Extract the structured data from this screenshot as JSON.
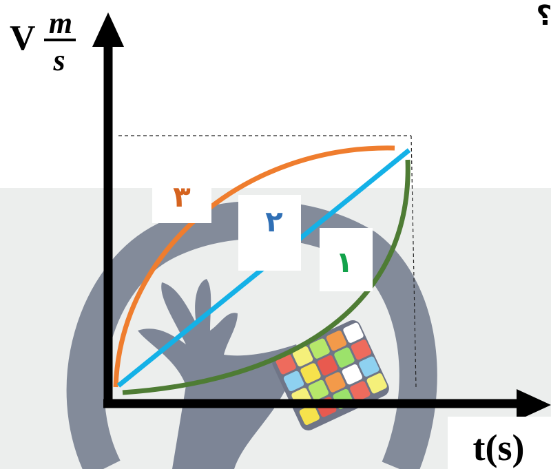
{
  "question_mark": "؟",
  "y_axis": {
    "symbol": "V",
    "unit_numerator": "m",
    "unit_denominator": "s"
  },
  "x_axis": {
    "label": "t(s)"
  },
  "curves": [
    {
      "label": "۳",
      "color": "#ef7d2e",
      "shape": "concave"
    },
    {
      "label": "۲",
      "color": "#14b1e7",
      "shape": "linear"
    },
    {
      "label": "۱",
      "color": "#4e7c34",
      "shape": "convex"
    }
  ],
  "label_colors": {
    "curve3": "#d5631f",
    "curve2": "#2f6fb5",
    "curve1": "#12a24a"
  },
  "background": {
    "band_color": "#eceeed",
    "watermark_color": "#7d8596"
  }
}
